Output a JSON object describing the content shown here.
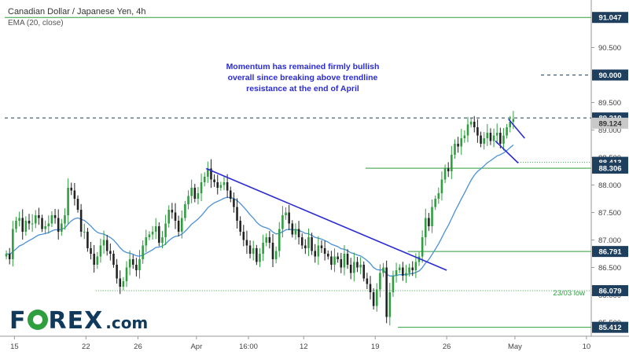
{
  "header": {
    "title": "Canadian Dollar / Japanese Yen, 4h",
    "indicator": "EMA (20, close)"
  },
  "annotation": {
    "lines": [
      "Momentum has remained firmly bullish",
      "overall since breaking above trendline",
      "resistance at the end of April"
    ]
  },
  "logo": {
    "text_left": "F",
    "text_right": "REX",
    "suffix": ".com"
  },
  "colors": {
    "up": "#2e9e3e",
    "down": "#222222",
    "ema": "#4a90d9",
    "trend": "#2b2bd6",
    "level_green": "#2e9e3e",
    "level_dash": "#1f3f5f",
    "accent_tag": "#1f3f5f"
  },
  "chart_data": {
    "type": "candlestick",
    "title": "Canadian Dollar / Japanese Yen, 4h",
    "ylim": [
      85.25,
      91.25
    ],
    "yticks": [
      85.5,
      86.0,
      86.5,
      87.0,
      87.5,
      88.0,
      88.5,
      89.0,
      89.5,
      90.5
    ],
    "ytick_labels": [
      "85.500",
      "86.000",
      "86.500",
      "87.000",
      "87.500",
      "88.000",
      "88.500",
      "89.000",
      "89.500",
      "90.500"
    ],
    "x_range": [
      0,
      180
    ],
    "xticks": [
      {
        "pos": 3,
        "label": "15"
      },
      {
        "pos": 25,
        "label": "22"
      },
      {
        "pos": 41,
        "label": "26"
      },
      {
        "pos": 59,
        "label": "Apr"
      },
      {
        "pos": 75,
        "label": "16:00"
      },
      {
        "pos": 92,
        "label": "12"
      },
      {
        "pos": 114,
        "label": "19"
      },
      {
        "pos": 136,
        "label": "26"
      },
      {
        "pos": 157,
        "label": "May"
      },
      {
        "pos": 179,
        "label": "10"
      }
    ],
    "candles_compact": "86.75,86.65,87.2,87.35,87.4,87.15,87.35,87.3,87.3,87.45,87.4,87.2,87.25,87.3,87.45,87.4,87.15,87.3,87.45,87.95,87.9,87.75,87.55,87.15,87.15,86.85,86.75,86.55,86.7,86.9,87,86.8,86.75,86.55,86.3,86.15,86.25,86.5,86.65,86.55,86.45,86.65,86.9,87.05,87.1,87.15,87.25,86.95,87.05,87.3,87.55,87.5,87.35,87.15,87.4,87.65,87.8,87.95,87.75,87.85,88.05,88.15,88.3,88.1,88.05,87.95,88,88.05,87.9,87.75,87.6,87.35,87.15,87,86.9,86.75,86.85,86.6,86.75,86.95,87.05,86.95,86.65,86.8,87.2,87.45,87.5,87.3,87.1,87.2,87.05,86.9,86.85,87.05,86.8,86.7,86.9,86.85,86.75,86.7,86.55,86.7,86.65,86.5,86.75,86.55,86.4,86.6,86.5,86.55,86.3,86.2,86.05,85.8,86.1,86.4,86.5,85.6,86.05,86.35,86.45,86.5,86.35,86.4,86.5,86.45,86.6,86.7,87.05,87.4,87.25,87.6,87.75,87.85,88.1,88.3,88.25,88.55,88.75,88.7,88.85,88.9,89.1,89.15,89.05,88.9,88.75,88.85,88.95,88.8,88.9,88.95,88.75,88.9,89.05,89.15,89.2",
    "ema_period": 20,
    "levels": [
      {
        "value": 91.047,
        "label": "91.047",
        "style": "solid-green"
      },
      {
        "value": 90.0,
        "label": "90.000",
        "style": "dashed"
      },
      {
        "value": 89.219,
        "label": "89.219",
        "style": "dashed-full"
      },
      {
        "value": 89.124,
        "label": "89.124",
        "style": "price"
      },
      {
        "value": 88.413,
        "label": "88.413",
        "style": "dotted-green"
      },
      {
        "value": 88.306,
        "label": "88.306",
        "style": "solid-green"
      },
      {
        "value": 86.791,
        "label": "86.791",
        "style": "solid-green"
      },
      {
        "value": 86.079,
        "label": "86.079",
        "style": "dotted-green"
      },
      {
        "value": 85.412,
        "label": "85.412",
        "style": "solid-green"
      }
    ],
    "low_label": "23/03 low",
    "trendlines": [
      {
        "x1": 62,
        "y1": 88.3,
        "x2": 136,
        "y2": 86.45
      },
      {
        "x1": 155,
        "y1": 89.2,
        "x2": 160,
        "y2": 88.85
      },
      {
        "x1": 151,
        "y1": 88.8,
        "x2": 158,
        "y2": 88.4
      }
    ]
  }
}
